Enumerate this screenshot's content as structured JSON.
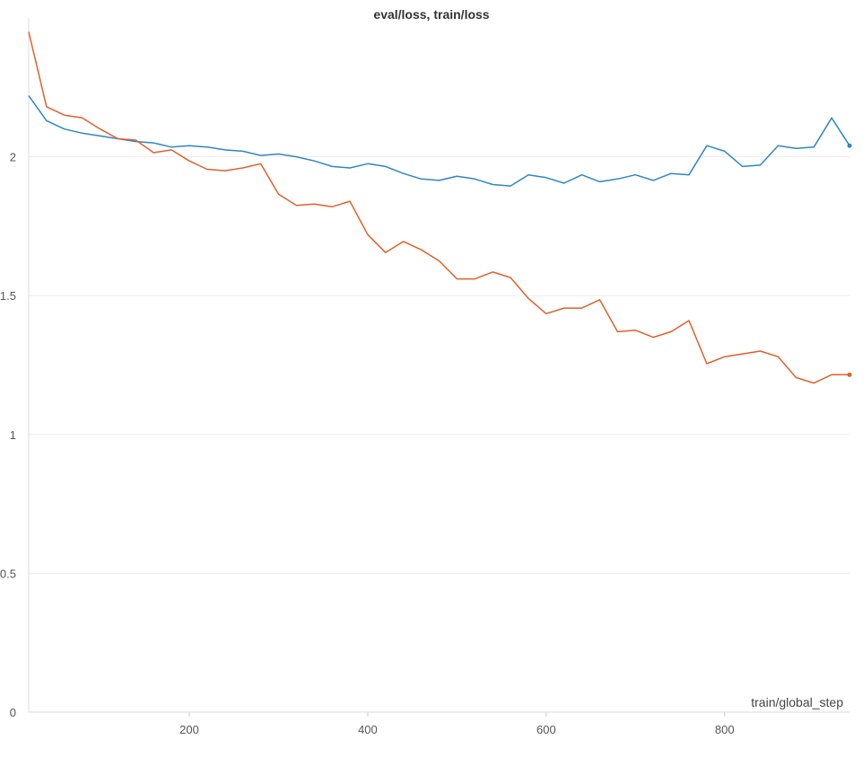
{
  "chart_data": {
    "type": "line",
    "title": "eval/loss, train/loss",
    "xlabel": "train/global_step",
    "ylabel": "",
    "xlim": [
      20,
      940
    ],
    "ylim": [
      0,
      2.5
    ],
    "xticks": [
      200,
      400,
      600,
      800
    ],
    "yticks": [
      0,
      0.5,
      1,
      1.5,
      2
    ],
    "ytick_labels": [
      "0",
      "0.5",
      "1",
      "1.5",
      "2"
    ],
    "xtick_labels": [
      "200",
      "400",
      "600",
      "800"
    ],
    "grid": true,
    "legend": "none",
    "x": [
      20,
      40,
      60,
      80,
      100,
      120,
      140,
      160,
      180,
      200,
      220,
      240,
      260,
      280,
      300,
      320,
      340,
      360,
      380,
      400,
      420,
      440,
      460,
      480,
      500,
      520,
      540,
      560,
      580,
      600,
      620,
      640,
      660,
      680,
      700,
      720,
      740,
      760,
      780,
      800,
      820,
      840,
      860,
      880,
      900,
      920,
      940
    ],
    "series": [
      {
        "color": "#2e86c7",
        "values": [
          2.22,
          2.13,
          2.1,
          2.085,
          2.075,
          2.065,
          2.055,
          2.05,
          2.035,
          2.04,
          2.035,
          2.025,
          2.02,
          2.005,
          2.01,
          2.0,
          1.985,
          1.965,
          1.96,
          1.975,
          1.965,
          1.94,
          1.92,
          1.915,
          1.93,
          1.92,
          1.9,
          1.895,
          1.935,
          1.925,
          1.905,
          1.935,
          1.91,
          1.92,
          1.935,
          1.915,
          1.94,
          1.935,
          2.04,
          2.02,
          1.965,
          1.97,
          2.04,
          2.03,
          2.035,
          2.14,
          2.04
        ]
      },
      {
        "color": "#e0612a",
        "values": [
          2.45,
          2.18,
          2.15,
          2.14,
          2.1,
          2.065,
          2.06,
          2.015,
          2.025,
          1.985,
          1.955,
          1.95,
          1.96,
          1.975,
          1.865,
          1.825,
          1.83,
          1.82,
          1.84,
          1.72,
          1.655,
          1.695,
          1.665,
          1.625,
          1.56,
          1.56,
          1.585,
          1.565,
          1.49,
          1.435,
          1.455,
          1.455,
          1.485,
          1.37,
          1.375,
          1.35,
          1.37,
          1.41,
          1.255,
          1.28,
          1.29,
          1.3,
          1.28,
          1.205,
          1.185,
          1.215,
          1.215
        ]
      }
    ]
  }
}
